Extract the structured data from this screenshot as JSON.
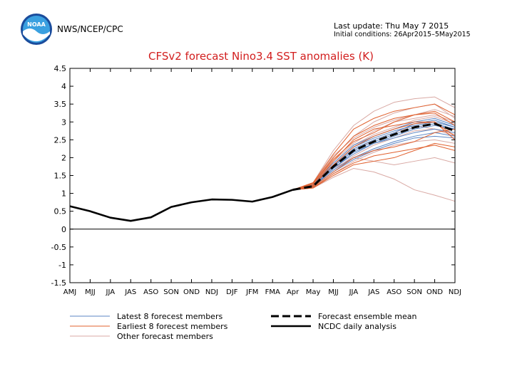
{
  "header": {
    "agency": "NWS/NCEP/CPC",
    "last_update": "Last update: Thu May 7 2015",
    "initial_conditions": "Initial conditions: 26Apr2015–5May2015",
    "logo_text": "NOAA"
  },
  "chart_data": {
    "type": "line",
    "title": "CFSv2 forecast Nino3.4 SST anomalies (K)",
    "xlabel": "",
    "ylabel": "",
    "categories": [
      "AMJ",
      "MJJ",
      "JJA",
      "JAS",
      "ASO",
      "SON",
      "OND",
      "NDJ",
      "DJF",
      "JFM",
      "FMA",
      "Apr",
      "May",
      "MJJ",
      "JJA",
      "JAS",
      "ASO",
      "SON",
      "OND",
      "NDJ"
    ],
    "ylim": [
      -1.5,
      4.5
    ],
    "yticks": [
      "4.5",
      "4",
      "3.5",
      "3",
      "2.5",
      "2",
      "1.5",
      "1",
      "0.5",
      "0",
      "-0.5",
      "-1",
      "-1.5"
    ],
    "grid": false,
    "legend_position": "bottom",
    "colors": {
      "latest": "#5b86c5",
      "earliest": "#e0602e",
      "other": "#d9a9a4",
      "mean": "#000000",
      "analysis": "#000000",
      "zero": "#000000"
    },
    "series": [
      {
        "name": "NCDC daily analysis",
        "style": "analysis",
        "values": [
          0.64,
          0.5,
          0.32,
          0.23,
          0.33,
          0.62,
          0.75,
          0.83,
          0.82,
          0.77,
          0.9,
          1.1,
          null,
          null,
          null,
          null,
          null,
          null,
          null,
          null
        ]
      },
      {
        "name": "Forecast ensemble mean",
        "style": "mean",
        "values": [
          null,
          null,
          null,
          null,
          null,
          null,
          null,
          null,
          null,
          null,
          null,
          1.1,
          1.2,
          1.75,
          2.2,
          2.45,
          2.65,
          2.85,
          2.95,
          2.75
        ]
      },
      {
        "name": "Latest 8 forecest members",
        "style": "latest",
        "members": [
          [
            1.1,
            1.2,
            1.7,
            2.1,
            2.4,
            2.6,
            2.8,
            2.9,
            2.8
          ],
          [
            1.1,
            1.25,
            1.8,
            2.3,
            2.55,
            2.75,
            2.9,
            3.0,
            2.85
          ],
          [
            1.1,
            1.2,
            1.65,
            2.0,
            2.25,
            2.45,
            2.6,
            2.7,
            2.6
          ],
          [
            1.1,
            1.22,
            1.75,
            2.2,
            2.45,
            2.65,
            2.85,
            2.95,
            2.8
          ],
          [
            1.1,
            1.18,
            1.6,
            1.95,
            2.2,
            2.4,
            2.55,
            2.6,
            2.55
          ],
          [
            1.1,
            1.25,
            1.85,
            2.35,
            2.6,
            2.8,
            3.0,
            3.1,
            2.9
          ],
          [
            1.1,
            1.2,
            1.7,
            2.15,
            2.4,
            2.55,
            2.7,
            2.8,
            2.7
          ],
          [
            1.1,
            1.22,
            1.78,
            2.25,
            2.5,
            2.7,
            2.95,
            3.05,
            2.85
          ]
        ]
      },
      {
        "name": "Earliest 8 forecest members",
        "style": "earliest",
        "members": [
          [
            1.1,
            1.3,
            2.1,
            2.8,
            3.1,
            3.3,
            3.4,
            3.5,
            3.2
          ],
          [
            1.1,
            1.15,
            1.5,
            1.8,
            1.9,
            2.0,
            2.2,
            2.4,
            2.3
          ],
          [
            1.1,
            1.2,
            1.9,
            2.5,
            2.8,
            2.9,
            3.0,
            3.0,
            2.6
          ],
          [
            1.1,
            1.25,
            1.95,
            2.45,
            2.7,
            3.0,
            3.2,
            3.3,
            3.0
          ],
          [
            1.1,
            1.18,
            1.6,
            2.0,
            2.2,
            2.3,
            2.45,
            2.7,
            2.8
          ],
          [
            1.1,
            1.22,
            1.8,
            2.3,
            2.6,
            2.8,
            2.95,
            3.0,
            2.5
          ],
          [
            1.1,
            1.15,
            1.55,
            1.85,
            2.05,
            2.15,
            2.25,
            2.35,
            2.2
          ],
          [
            1.1,
            1.28,
            2.0,
            2.6,
            2.9,
            3.1,
            3.2,
            3.25,
            2.9
          ]
        ]
      },
      {
        "name": "Other forecast members",
        "style": "other",
        "members": [
          [
            1.1,
            1.3,
            2.2,
            2.9,
            3.3,
            3.55,
            3.65,
            3.7,
            3.4
          ],
          [
            1.1,
            1.15,
            1.45,
            1.7,
            1.6,
            1.4,
            1.1,
            0.95,
            0.78
          ],
          [
            1.1,
            1.2,
            1.7,
            2.0,
            1.9,
            1.8,
            1.9,
            2.0,
            1.85
          ],
          [
            1.1,
            1.25,
            1.9,
            2.4,
            2.75,
            3.0,
            3.1,
            3.2,
            3.0
          ],
          [
            1.1,
            1.18,
            1.75,
            2.2,
            2.5,
            2.7,
            2.9,
            2.8,
            2.6
          ],
          [
            1.1,
            1.22,
            2.0,
            2.6,
            3.0,
            3.25,
            3.4,
            3.5,
            3.1
          ],
          [
            1.1,
            1.2,
            1.65,
            2.05,
            2.35,
            2.55,
            2.75,
            2.8,
            2.65
          ],
          [
            1.1,
            1.28,
            2.05,
            2.55,
            2.85,
            3.05,
            3.2,
            3.35,
            3.15
          ],
          [
            1.1,
            1.16,
            1.55,
            1.9,
            2.15,
            2.35,
            2.45,
            2.5,
            2.4
          ],
          [
            1.1,
            1.24,
            1.85,
            2.35,
            2.65,
            2.85,
            3.05,
            3.15,
            2.95
          ]
        ]
      }
    ],
    "legend": [
      {
        "label": "Latest 8 forecest members",
        "style": "latest"
      },
      {
        "label": "Earliest 8 forecest members",
        "style": "earliest"
      },
      {
        "label": "Other forecast members",
        "style": "other"
      },
      {
        "label": "Forecast ensemble mean",
        "style": "mean"
      },
      {
        "label": "NCDC daily analysis",
        "style": "analysis"
      }
    ]
  }
}
